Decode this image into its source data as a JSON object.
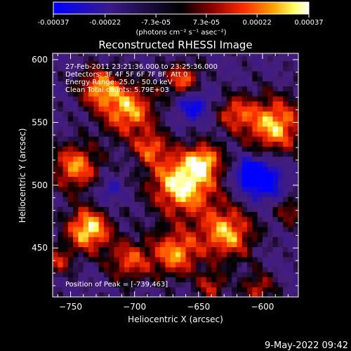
{
  "colorbar": {
    "tick_labels": [
      "-0.00037",
      "-0.00022",
      "-7.3e-05",
      "7.3e-05",
      "0.00022",
      "0.00037"
    ],
    "tick_values": [
      -0.00037,
      -0.00022,
      -7.3e-05,
      7.3e-05,
      0.00022,
      0.00037
    ],
    "range": [
      -0.00037,
      0.00037
    ],
    "unit_label": "(photons cm⁻² s⁻¹ asec⁻²)",
    "colors": [
      "#0000ff",
      "#3a1a8a",
      "#000000",
      "#8a0000",
      "#ff3000",
      "#ffa000",
      "#ffff60",
      "#ffffff"
    ]
  },
  "footer": {
    "date": "9-May-2022 09:42"
  },
  "chart_data": {
    "type": "heatmap",
    "title": "Reconstructed RHESSI Image",
    "xlabel": "Heliocentric X (arcsec)",
    "ylabel": "Heliocentric Y (arcsec)",
    "xlim": [
      -764,
      -572
    ],
    "ylim": [
      411,
      605
    ],
    "x_ticks": [
      -750,
      -700,
      -650,
      -600
    ],
    "y_ticks": [
      450,
      500,
      550,
      600
    ],
    "x_tick_labels": [
      "−750",
      "−700",
      "−650",
      "−600"
    ],
    "y_tick_labels": [
      "450",
      "500",
      "550",
      "600"
    ],
    "annotations": [
      "27-Feb-2011 23:21:36.000 to 23:25:36.000",
      "Detectors: 3F 4F 5F 6F 7F 8F, Att 0",
      "Energy Range: 25.0 - 50.0 keV",
      "Clean     Total counts: 5.79E+03"
    ],
    "peak_label": "Position of Peak = [-739,463]",
    "peak": [
      -739,
      463
    ],
    "blobs": [
      {
        "x": -662,
        "y": 502,
        "sigma": 18,
        "amp": 1.0
      },
      {
        "x": -736,
        "y": 465,
        "sigma": 12,
        "amp": 0.95
      },
      {
        "x": -746,
        "y": 515,
        "sigma": 13,
        "amp": 0.75
      },
      {
        "x": -705,
        "y": 560,
        "sigma": 15,
        "amp": 0.8
      },
      {
        "x": -728,
        "y": 578,
        "sigma": 11,
        "amp": 0.7
      },
      {
        "x": -662,
        "y": 583,
        "sigma": 10,
        "amp": 0.7
      },
      {
        "x": -591,
        "y": 548,
        "sigma": 16,
        "amp": 0.85
      },
      {
        "x": -622,
        "y": 558,
        "sigma": 10,
        "amp": 0.55
      },
      {
        "x": -628,
        "y": 462,
        "sigma": 15,
        "amp": 0.8
      },
      {
        "x": -668,
        "y": 446,
        "sigma": 13,
        "amp": 0.75
      },
      {
        "x": -704,
        "y": 440,
        "sigma": 12,
        "amp": 0.6
      },
      {
        "x": -688,
        "y": 530,
        "sigma": 9,
        "amp": 0.55
      },
      {
        "x": -603,
        "y": 418,
        "sigma": 9,
        "amp": 0.5
      },
      {
        "x": -578,
        "y": 480,
        "sigma": 8,
        "amp": 0.45
      },
      {
        "x": -645,
        "y": 520,
        "sigma": 9,
        "amp": 0.6
      },
      {
        "x": -760,
        "y": 440,
        "sigma": 8,
        "amp": 0.5
      },
      {
        "x": -640,
        "y": 420,
        "sigma": 8,
        "amp": 0.5
      },
      {
        "x": -610,
        "y": 510,
        "sigma": 7,
        "amp": -0.5
      },
      {
        "x": -600,
        "y": 505,
        "sigma": 12,
        "amp": -0.7
      },
      {
        "x": -655,
        "y": 565,
        "sigma": 10,
        "amp": -0.55
      },
      {
        "x": -720,
        "y": 495,
        "sigma": 7,
        "amp": -0.35
      }
    ]
  }
}
